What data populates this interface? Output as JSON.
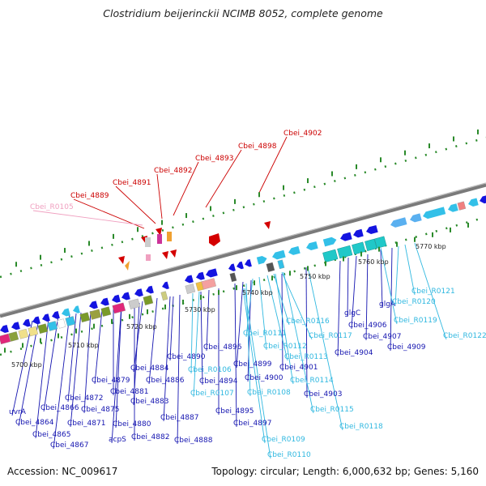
{
  "title": "Clostridium beijerinckii NCIMB 8052, complete genome",
  "footer": {
    "accession": "Accession: NC_009617",
    "summary": "Topology: circular; Length: 6,000,632 bp; Genes: 5,160"
  },
  "colors": {
    "backbone": "#8a8a8a",
    "forward_gene": "#1414e0",
    "rna_gene": "#33c0e8",
    "highlight_gene": "#d40000",
    "pseudo_gene": "#f0a0c0",
    "tick": "#2a8a2a"
  },
  "kbp_ticks": [
    "5700 kbp",
    "5710 kbp",
    "5720 kbp",
    "5730 kbp",
    "5740 kbp",
    "5750 kbp",
    "5760 kbp",
    "5770 kbp"
  ],
  "gene_labels": {
    "highlighted": [
      "Cbei_4889",
      "Cbei_4891",
      "Cbei_4892",
      "Cbei_4893",
      "Cbei_4898",
      "Cbei_4902"
    ],
    "pseudo": [
      "Cbei_R0105"
    ],
    "forward": [
      "uvrA",
      "Cbei_4864",
      "Cbei_4865",
      "Cbei_4866",
      "Cbei_4867",
      "Cbei_4871",
      "Cbei_4872",
      "Cbei_4875",
      "Cbei_4879",
      "Cbei_4880",
      "Cbei_4881",
      "Cbei_4882",
      "acpS",
      "Cbei_4883",
      "Cbei_4884",
      "Cbei_4886",
      "Cbei_4887",
      "Cbei_4888",
      "Cbei_4890",
      "Cbei_4894",
      "Cbei_4895",
      "Cbei_4896",
      "Cbei_4897",
      "Cbei_4899",
      "Cbei_4900",
      "Cbei_4901",
      "Cbei_4903",
      "Cbei_4904",
      "glgC",
      "Cbei_4906",
      "glgA",
      "Cbei_4907",
      "Cbei_4909"
    ],
    "rna": [
      "Cbei_R0106",
      "Cbei_R0107",
      "Cbei_R0108",
      "Cbei_R0109",
      "Cbei_R0110",
      "Cbei_R0111",
      "Cbei_R0112",
      "Cbei_R0113",
      "Cbei_R0114",
      "Cbei_R0115",
      "Cbei_R0116",
      "Cbei_R0117",
      "Cbei_R0118",
      "Cbei_R0119",
      "Cbei_R0120",
      "Cbei_R0121",
      "Cbei_R0122"
    ]
  }
}
